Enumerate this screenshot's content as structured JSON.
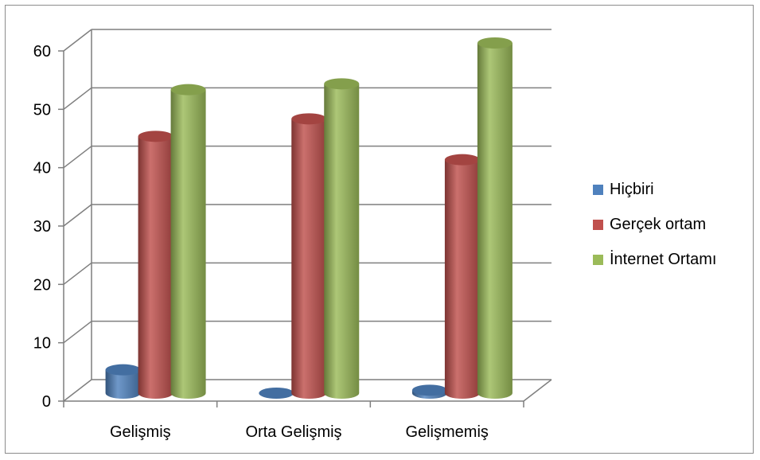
{
  "chart_data": {
    "type": "bar",
    "categories": [
      "Gelişmiş",
      "Orta Gelişmiş",
      "Gelişmemiş"
    ],
    "series": [
      {
        "name": "Hiçbiri",
        "values": [
          4,
          0,
          0.5
        ],
        "color": "#4f81bd"
      },
      {
        "name": "Gerçek ortam",
        "values": [
          44,
          47,
          40
        ],
        "color": "#c0504d"
      },
      {
        "name": "İnternet Ortamı",
        "values": [
          52,
          53,
          60
        ],
        "color": "#9bbb59"
      }
    ],
    "y_ticks": [
      "0",
      "10",
      "20",
      "30",
      "40",
      "50",
      "60"
    ],
    "ylim": [
      0,
      60
    ],
    "grid": true,
    "legend_position": "right",
    "style": "3d-cylinder"
  }
}
